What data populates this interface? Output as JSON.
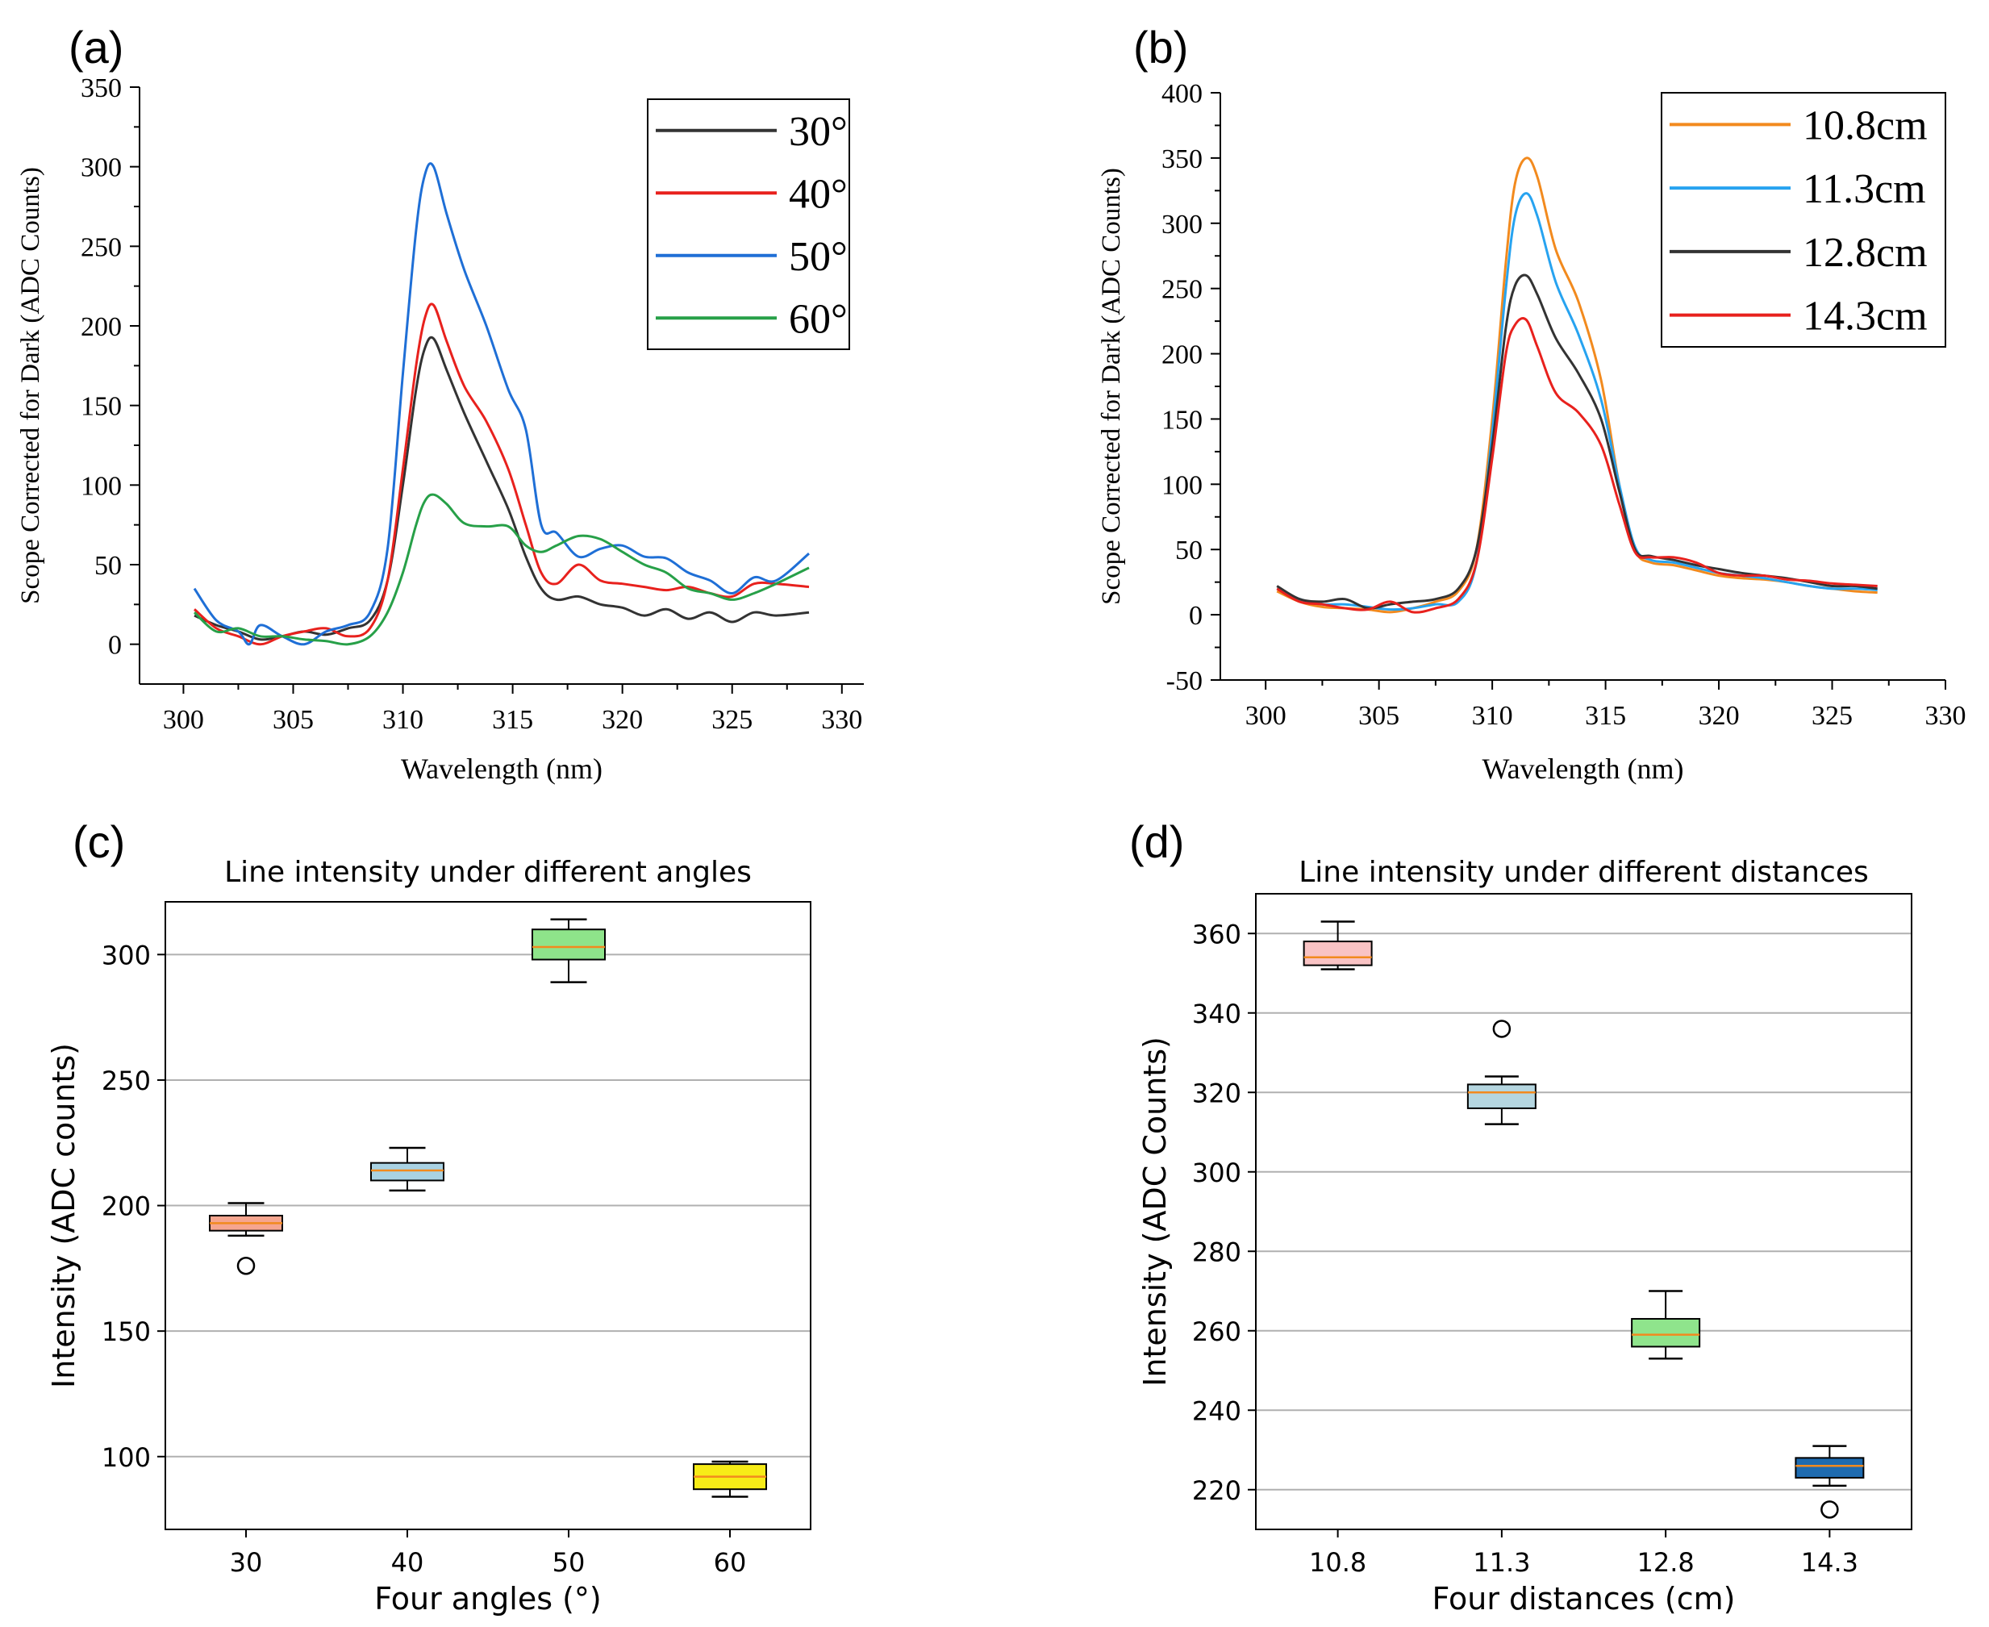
{
  "chart_data": [
    {
      "id": "a",
      "panel_label": "(a)",
      "type": "line",
      "title": "",
      "xlabel": "Wavelength (nm)",
      "ylabel": "Scope Corrected for Dark (ADC Counts)",
      "xlim": [
        298,
        331
      ],
      "ylim": [
        -25,
        350
      ],
      "xticks": [
        300,
        305,
        310,
        315,
        320,
        325,
        330
      ],
      "yticks": [
        0,
        50,
        100,
        150,
        200,
        250,
        300,
        350
      ],
      "legend_position": "top-right",
      "series": [
        {
          "name": "30°",
          "color": "#333333",
          "x": [
            300.5,
            301.5,
            302.5,
            303.5,
            304.5,
            305.5,
            306.5,
            307.5,
            308.5,
            309.3,
            310.0,
            310.6,
            311.0,
            311.4,
            312.0,
            312.8,
            313.8,
            314.8,
            315.6,
            316.3,
            317.0,
            318.0,
            319.0,
            320.0,
            321.0,
            322.0,
            323.0,
            324.0,
            325.0,
            326.0,
            327.0,
            328.5
          ],
          "y": [
            18,
            12,
            8,
            3,
            5,
            8,
            6,
            10,
            15,
            40,
            100,
            160,
            186,
            192,
            172,
            145,
            115,
            85,
            55,
            35,
            28,
            30,
            25,
            23,
            18,
            22,
            16,
            20,
            14,
            20,
            18,
            20
          ]
        },
        {
          "name": "40°",
          "color": "#e8211d",
          "x": [
            300.5,
            301.5,
            302.5,
            303.5,
            304.5,
            305.5,
            306.5,
            307.5,
            308.5,
            309.3,
            310.0,
            310.6,
            311.0,
            311.4,
            312.0,
            312.8,
            313.8,
            314.8,
            315.6,
            316.3,
            317.0,
            318.0,
            319.0,
            320.0,
            321.0,
            322.0,
            323.0,
            324.0,
            325.0,
            326.0,
            327.0,
            328.5
          ],
          "y": [
            22,
            10,
            5,
            0,
            5,
            8,
            10,
            5,
            10,
            40,
            110,
            175,
            205,
            213,
            190,
            162,
            140,
            110,
            75,
            45,
            38,
            50,
            40,
            38,
            36,
            34,
            36,
            32,
            30,
            38,
            38,
            36
          ]
        },
        {
          "name": "50°",
          "color": "#1f6fd6",
          "x": [
            300.5,
            301.5,
            302.5,
            303.0,
            303.5,
            304.5,
            305.5,
            306.5,
            307.5,
            308.5,
            309.3,
            310.0,
            310.6,
            311.0,
            311.4,
            312.0,
            312.8,
            313.8,
            314.8,
            315.6,
            316.3,
            317.0,
            318.0,
            319.0,
            320.0,
            321.0,
            322.0,
            323.0,
            324.0,
            325.0,
            326.0,
            327.0,
            328.5
          ],
          "y": [
            35,
            15,
            8,
            0,
            12,
            5,
            0,
            8,
            12,
            20,
            60,
            170,
            260,
            295,
            300,
            270,
            235,
            200,
            160,
            135,
            75,
            70,
            55,
            60,
            62,
            55,
            54,
            45,
            40,
            32,
            42,
            40,
            57
          ]
        },
        {
          "name": "60°",
          "color": "#27a048",
          "x": [
            300.5,
            301.5,
            302.5,
            303.5,
            304.5,
            305.5,
            306.5,
            307.5,
            308.5,
            309.3,
            310.0,
            310.6,
            311.0,
            311.4,
            312.0,
            312.8,
            313.8,
            314.8,
            315.6,
            316.3,
            317.0,
            318.0,
            319.0,
            320.0,
            321.0,
            322.0,
            323.0,
            324.0,
            325.0,
            326.0,
            327.0,
            328.5
          ],
          "y": [
            20,
            8,
            10,
            5,
            5,
            3,
            2,
            0,
            5,
            20,
            45,
            75,
            90,
            94,
            88,
            76,
            74,
            74,
            62,
            58,
            62,
            68,
            66,
            58,
            50,
            45,
            35,
            32,
            28,
            32,
            38,
            48
          ]
        }
      ]
    },
    {
      "id": "b",
      "panel_label": "(b)",
      "type": "line",
      "title": "",
      "xlabel": "Wavelength (nm)",
      "ylabel": "Scope Corrected for Dark (ADC Counts)",
      "xlim": [
        298,
        330
      ],
      "ylim": [
        -50,
        400
      ],
      "xticks": [
        300,
        305,
        310,
        315,
        320,
        325,
        330
      ],
      "yticks": [
        -50,
        0,
        50,
        100,
        150,
        200,
        250,
        300,
        350,
        400
      ],
      "legend_position": "top-right",
      "series": [
        {
          "name": "10.8cm",
          "color": "#f28a1e",
          "x": [
            300.5,
            301.5,
            302.5,
            303.5,
            304.5,
            305.5,
            306.5,
            307.5,
            308.5,
            309.3,
            310.0,
            310.6,
            311.0,
            311.5,
            312.0,
            312.8,
            313.8,
            314.8,
            315.6,
            316.3,
            317.0,
            318.0,
            319.0,
            320.0,
            321.0,
            322.0,
            323.0,
            324.0,
            325.0,
            326.0,
            327.0
          ],
          "y": [
            18,
            10,
            6,
            5,
            4,
            2,
            5,
            10,
            18,
            50,
            150,
            270,
            330,
            350,
            335,
            280,
            240,
            180,
            100,
            50,
            40,
            38,
            34,
            30,
            28,
            27,
            25,
            22,
            20,
            18,
            17
          ]
        },
        {
          "name": "11.3cm",
          "color": "#27a3f0",
          "x": [
            300.5,
            301.5,
            302.5,
            303.5,
            304.5,
            305.5,
            306.5,
            307.5,
            308.5,
            309.3,
            310.0,
            310.6,
            311.0,
            311.5,
            312.0,
            312.8,
            313.8,
            314.8,
            315.6,
            316.3,
            317.0,
            318.0,
            319.0,
            320.0,
            321.0,
            322.0,
            323.0,
            324.0,
            325.0,
            326.0,
            327.0
          ],
          "y": [
            20,
            12,
            8,
            8,
            6,
            4,
            5,
            8,
            10,
            40,
            140,
            250,
            305,
            323,
            305,
            255,
            215,
            165,
            100,
            52,
            42,
            40,
            36,
            32,
            30,
            28,
            25,
            22,
            20,
            20,
            19
          ]
        },
        {
          "name": "12.8cm",
          "color": "#333333",
          "x": [
            300.5,
            301.5,
            302.5,
            303.5,
            304.5,
            305.5,
            306.5,
            307.5,
            308.5,
            309.3,
            310.0,
            310.6,
            311.0,
            311.5,
            312.0,
            312.8,
            313.8,
            314.8,
            315.6,
            316.3,
            317.0,
            318.0,
            319.0,
            320.0,
            321.0,
            322.0,
            323.0,
            324.0,
            325.0,
            326.0,
            327.0
          ],
          "y": [
            22,
            12,
            10,
            12,
            5,
            8,
            10,
            12,
            20,
            50,
            130,
            220,
            252,
            260,
            245,
            212,
            185,
            150,
            95,
            50,
            45,
            42,
            38,
            35,
            32,
            30,
            28,
            25,
            22,
            22,
            20
          ]
        },
        {
          "name": "14.3cm",
          "color": "#e8211d",
          "x": [
            300.5,
            301.5,
            302.5,
            303.5,
            304.5,
            305.5,
            306.5,
            307.5,
            308.5,
            309.3,
            310.0,
            310.6,
            311.0,
            311.5,
            312.0,
            312.8,
            313.8,
            314.8,
            315.6,
            316.3,
            317.0,
            318.0,
            319.0,
            320.0,
            321.0,
            322.0,
            323.0,
            324.0,
            325.0,
            326.0,
            327.0
          ],
          "y": [
            20,
            10,
            8,
            5,
            4,
            10,
            2,
            5,
            12,
            40,
            120,
            200,
            222,
            226,
            205,
            170,
            155,
            130,
            85,
            48,
            44,
            44,
            40,
            32,
            30,
            30,
            27,
            26,
            24,
            23,
            22
          ]
        }
      ]
    },
    {
      "id": "c",
      "panel_label": "(c)",
      "type": "box",
      "title": "Line intensity under different angles",
      "xlabel": "Four angles (°)",
      "ylabel": "Intensity (ADC counts)",
      "ylim": [
        71,
        321
      ],
      "yticks": [
        100,
        150,
        200,
        250,
        300
      ],
      "grid": "y",
      "categories": [
        "30",
        "40",
        "50",
        "60"
      ],
      "boxes": [
        {
          "label": "30",
          "color": "#f6a58f",
          "whisker_low": 188,
          "q1": 190,
          "median": 193,
          "q3": 196,
          "whisker_high": 201,
          "outliers": [
            176
          ]
        },
        {
          "label": "40",
          "color": "#a9d2e3",
          "whisker_low": 206,
          "q1": 210,
          "median": 214,
          "q3": 217,
          "whisker_high": 223,
          "outliers": []
        },
        {
          "label": "50",
          "color": "#8ee48a",
          "whisker_low": 289,
          "q1": 298,
          "median": 303,
          "q3": 310,
          "whisker_high": 314,
          "outliers": []
        },
        {
          "label": "60",
          "color": "#f7ec17",
          "whisker_low": 84,
          "q1": 87,
          "median": 92,
          "q3": 97,
          "whisker_high": 98,
          "outliers": []
        }
      ]
    },
    {
      "id": "d",
      "panel_label": "(d)",
      "type": "box",
      "title": "Line intensity under different distances",
      "xlabel": "Four distances (cm)",
      "ylabel": "Intensity (ADC Counts)",
      "ylim": [
        210,
        370
      ],
      "yticks": [
        220,
        240,
        260,
        280,
        300,
        320,
        340,
        360
      ],
      "grid": "y",
      "categories": [
        "10.8",
        "11.3",
        "12.8",
        "14.3"
      ],
      "boxes": [
        {
          "label": "10.8",
          "color": "#f9c3c4",
          "whisker_low": 351,
          "q1": 352,
          "median": 354,
          "q3": 358,
          "whisker_high": 363,
          "outliers": []
        },
        {
          "label": "11.3",
          "color": "#b5d6e0",
          "whisker_low": 312,
          "q1": 316,
          "median": 320,
          "q3": 322,
          "whisker_high": 324,
          "outliers": [
            336
          ]
        },
        {
          "label": "12.8",
          "color": "#8fe48c",
          "whisker_low": 253,
          "q1": 256,
          "median": 259,
          "q3": 263,
          "whisker_high": 270,
          "outliers": []
        },
        {
          "label": "14.3",
          "color": "#1e6bb0",
          "whisker_low": 221,
          "q1": 223,
          "median": 226,
          "q3": 228,
          "whisker_high": 231,
          "outliers": [
            215
          ]
        }
      ]
    }
  ]
}
